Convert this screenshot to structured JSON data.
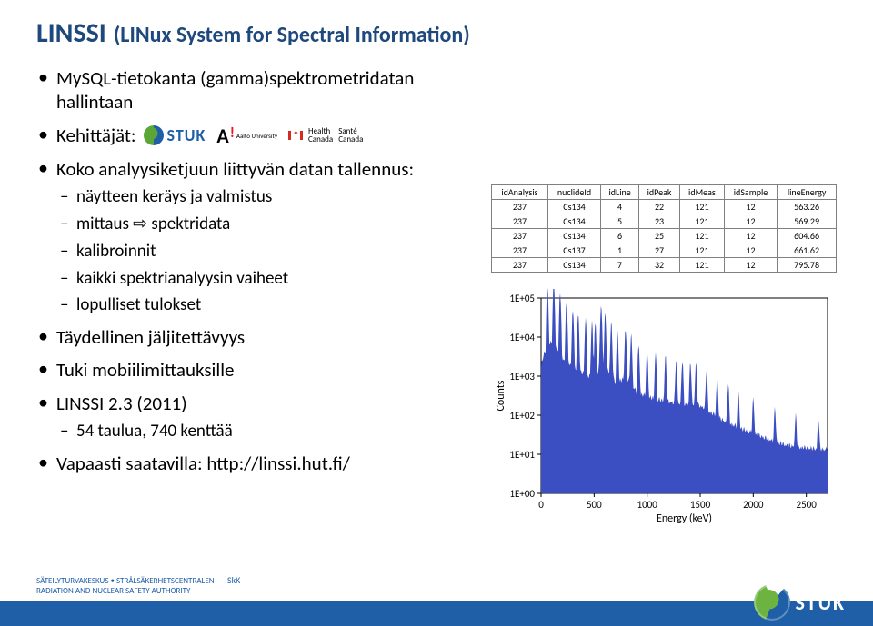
{
  "title": {
    "main": "LINSSI",
    "sub": "(LINux System for Spectral Information)",
    "color": "#1f497d",
    "main_fontsize": 30,
    "sub_fontsize": 24
  },
  "bullets": [
    {
      "text": "MySQL-tietokanta (gamma)spektrometridatan hallintaan"
    },
    {
      "text": "Kehittäjät:",
      "has_logos": true
    },
    {
      "text": "Koko analyysiketjuun liittyvän datan tallennus:",
      "sub": [
        "näytteen keräys ja valmistus",
        "mittaus ⇨ spektridata",
        "kalibroinnit",
        "kaikki spektrianalyysin vaiheet",
        "lopulliset tulokset"
      ]
    },
    {
      "text": "Täydellinen jäljitettävyys"
    },
    {
      "text": "Tuki mobiilimittauksille"
    },
    {
      "text": "LINSSI 2.3  (2011)",
      "sub": [
        "54 taulua, 740 kenttää"
      ]
    },
    {
      "text": "Vapaasti saatavilla: http://linssi.hut.fi/"
    }
  ],
  "logos": {
    "stuk": "STUK",
    "aalto_sub": "Aalto University",
    "health_canada_en": "Health\nCanada",
    "health_canada_fr": "Santé\nCanada"
  },
  "table": {
    "columns": [
      "idAnalysis",
      "nuclideId",
      "idLine",
      "idPeak",
      "idMeas",
      "idSample",
      "lineEnergy"
    ],
    "rows": [
      [
        "237",
        "Cs134",
        "4",
        "22",
        "121",
        "12",
        "563.26"
      ],
      [
        "237",
        "Cs134",
        "5",
        "23",
        "121",
        "12",
        "569.29"
      ],
      [
        "237",
        "Cs134",
        "6",
        "25",
        "121",
        "12",
        "604.66"
      ],
      [
        "237",
        "Cs137",
        "1",
        "27",
        "121",
        "12",
        "661.62"
      ],
      [
        "237",
        "Cs134",
        "7",
        "32",
        "121",
        "12",
        "795.78"
      ]
    ],
    "border_color": "#808080",
    "fontsize": 10
  },
  "chart": {
    "type": "line",
    "xlabel": "Energy (keV)",
    "ylabel": "Counts",
    "xlim": [
      0,
      2700
    ],
    "ylim_log": [
      1,
      100000
    ],
    "xticks": [
      0,
      500,
      1000,
      1500,
      2000,
      2500
    ],
    "yticks_exp": [
      0,
      1,
      2,
      3,
      4,
      5
    ],
    "ytick_labels": [
      "1E+00",
      "1E+01",
      "1E+02",
      "1E+03",
      "1E+04",
      "1E+05"
    ],
    "background_color": "#ffffff",
    "axis_color": "#000000",
    "fill_color": "#3b4fc2",
    "fill_opacity": 1.0,
    "label_fontsize": 12,
    "tick_fontsize": 11,
    "baseline": [
      [
        0,
        2000
      ],
      [
        100,
        8000
      ],
      [
        200,
        3000
      ],
      [
        300,
        1800
      ],
      [
        400,
        1200
      ],
      [
        500,
        900
      ],
      [
        600,
        1800
      ],
      [
        700,
        700
      ],
      [
        800,
        900
      ],
      [
        900,
        400
      ],
      [
        1000,
        300
      ],
      [
        1100,
        260
      ],
      [
        1200,
        230
      ],
      [
        1300,
        210
      ],
      [
        1400,
        200
      ],
      [
        1500,
        180
      ],
      [
        1600,
        120
      ],
      [
        1700,
        80
      ],
      [
        1800,
        60
      ],
      [
        1900,
        45
      ],
      [
        2000,
        35
      ],
      [
        2100,
        28
      ],
      [
        2200,
        22
      ],
      [
        2300,
        18
      ],
      [
        2400,
        16
      ],
      [
        2500,
        15
      ],
      [
        2600,
        14
      ],
      [
        2700,
        14
      ]
    ],
    "peaks_x": [
      60,
      120,
      180,
      240,
      300,
      350,
      420,
      480,
      511,
      563,
      569,
      605,
      662,
      720,
      796,
      850,
      920,
      1000,
      1080,
      1173,
      1274,
      1332,
      1408,
      1460,
      1560,
      1660,
      1764,
      1860,
      2000,
      2204,
      2400,
      2614
    ],
    "peak_factor_range": [
      3,
      40
    ]
  },
  "footer": {
    "skk": "SkK",
    "line1": "SÄTEILYTURVAKESKUS • STRÅLSÄKERHETSCENTRALEN",
    "line2": "RADIATION AND NUCLEAR SAFETY AUTHORITY",
    "logo_text": "STUK",
    "bar_color": "#1f5fa8",
    "text_color": "#1f5fa8"
  }
}
